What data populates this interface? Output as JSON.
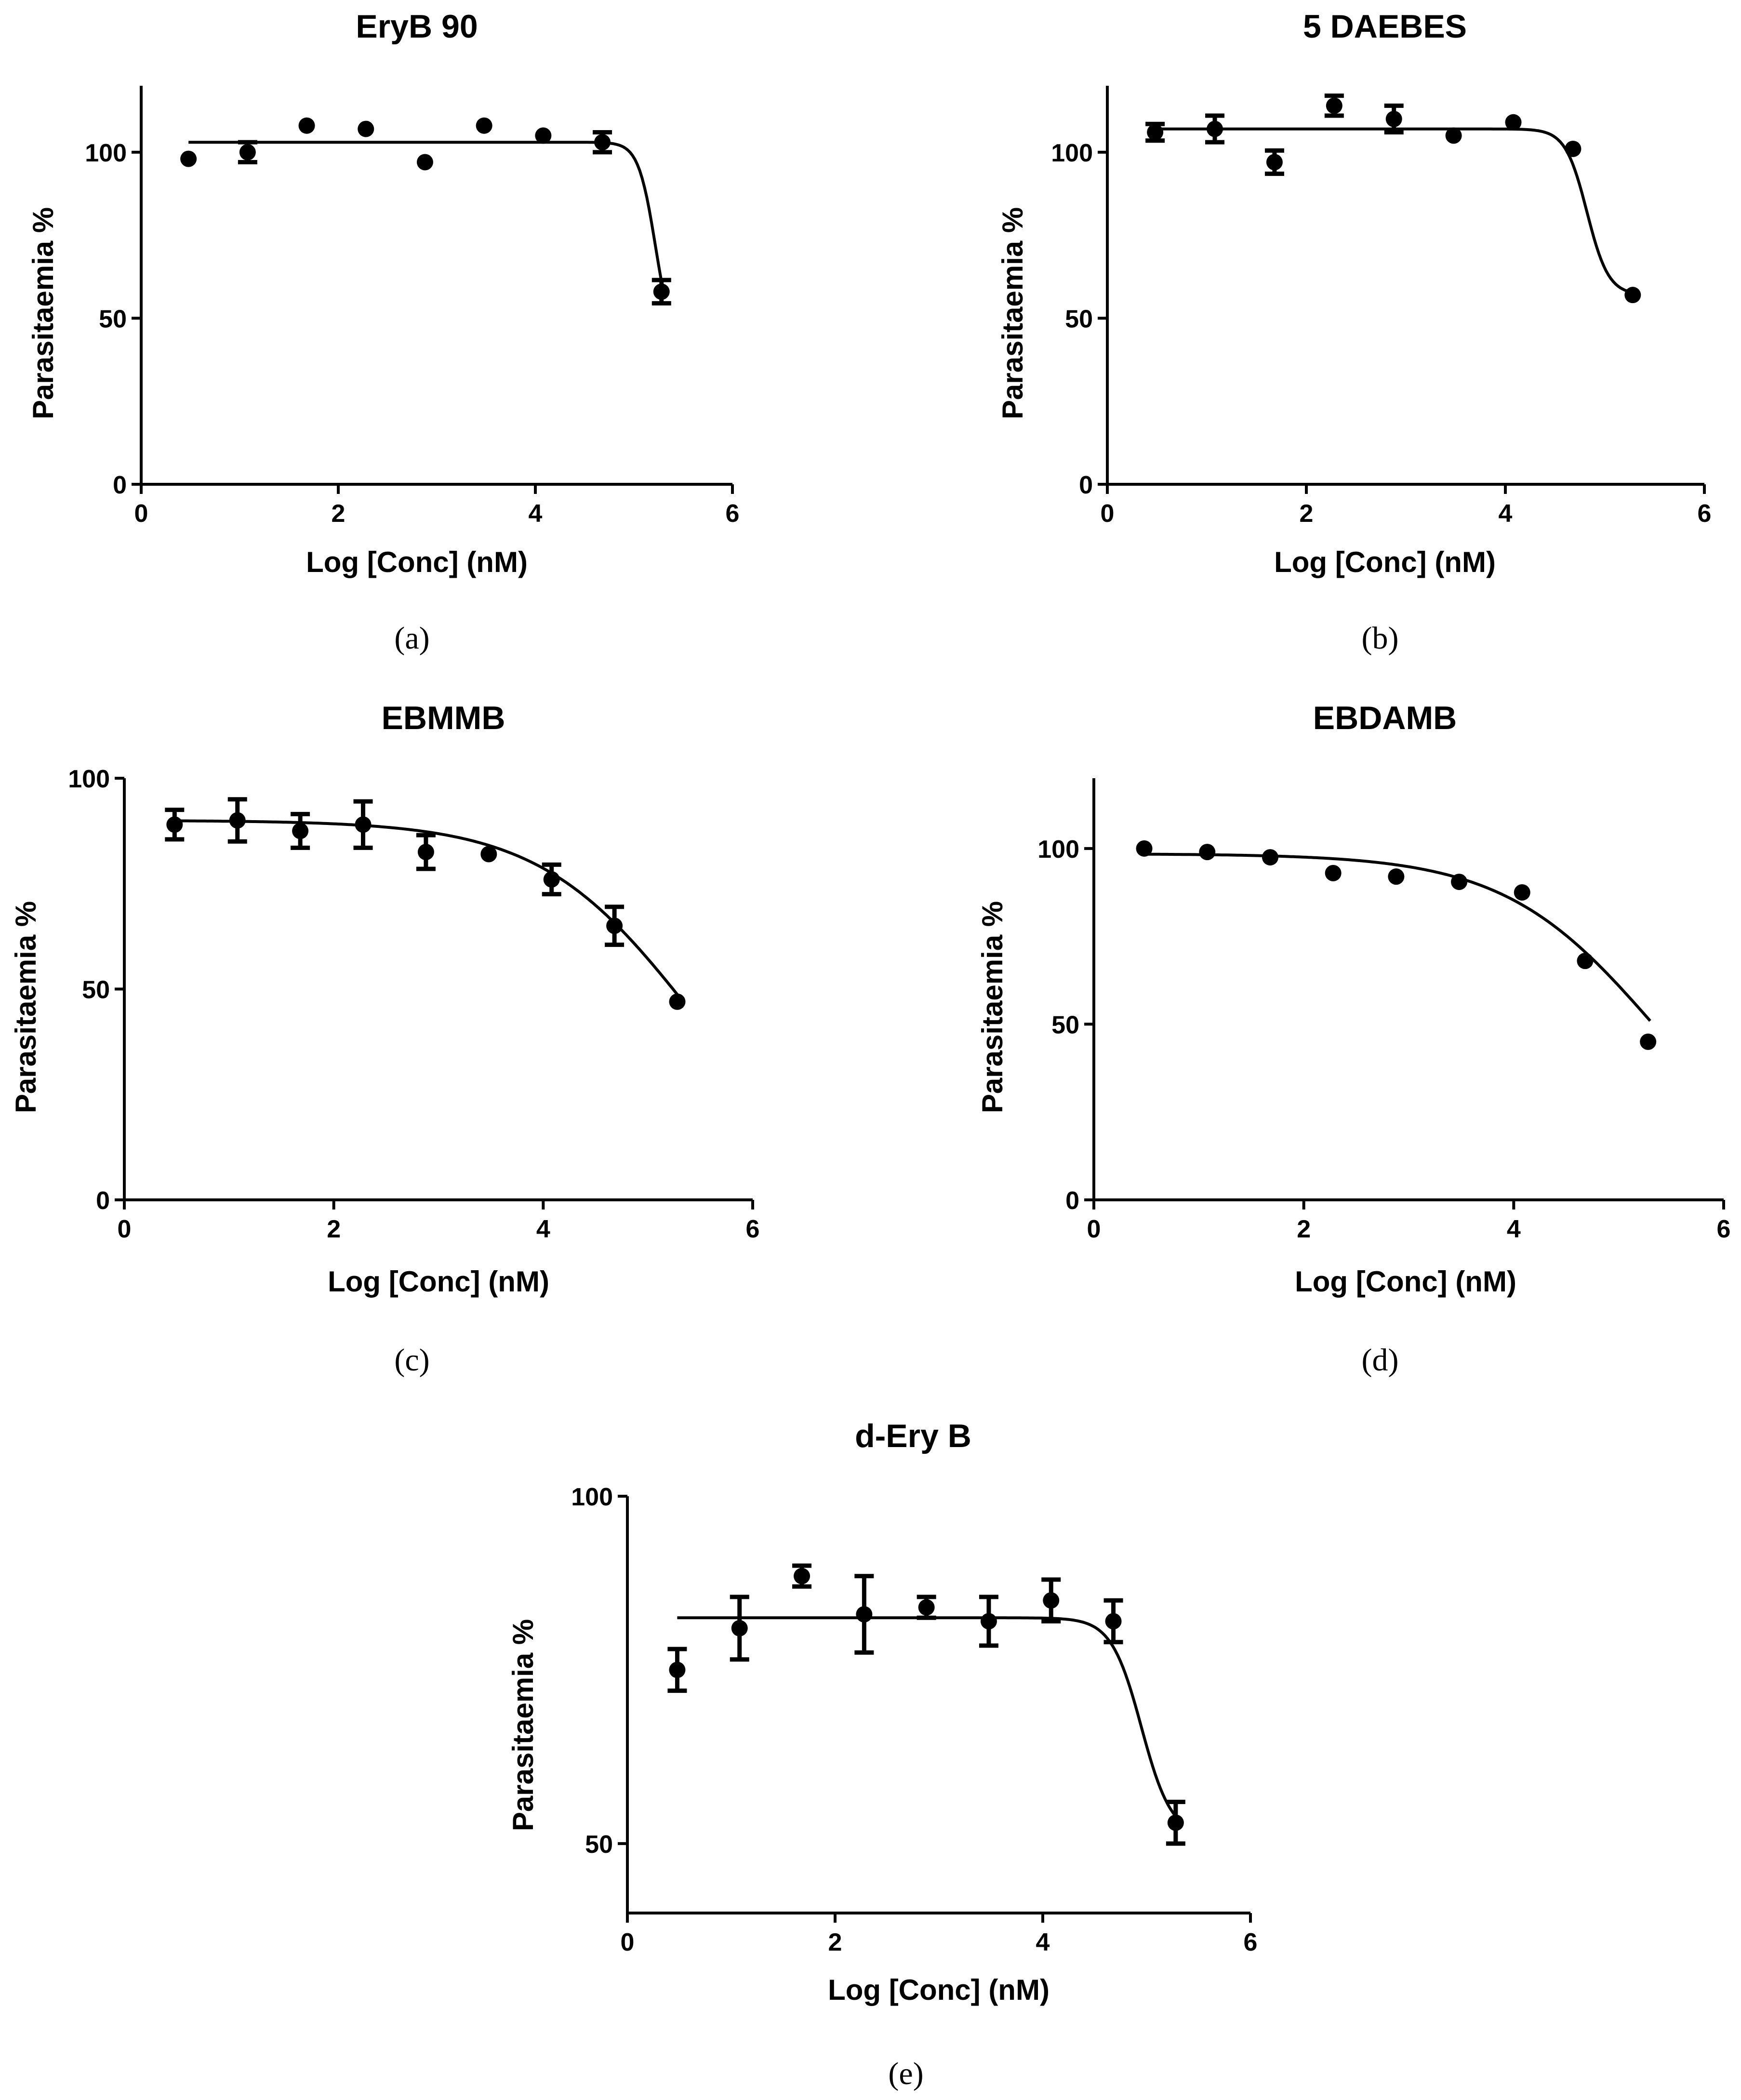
{
  "chart_data": [
    {
      "type": "scatter",
      "panel": "(a)",
      "title": "EryB 90",
      "xlabel": "Log [Conc] (nM)",
      "ylabel": "Parasitaemia %",
      "xlim": [
        0,
        6
      ],
      "ylim": [
        0,
        120
      ],
      "xticks": [
        0,
        2,
        4,
        6
      ],
      "yticks": [
        0,
        50,
        100
      ],
      "points": [
        {
          "x": 0.48,
          "y": 98,
          "err": 0
        },
        {
          "x": 1.08,
          "y": 100,
          "err": 3
        },
        {
          "x": 1.68,
          "y": 108,
          "err": 0
        },
        {
          "x": 2.28,
          "y": 107,
          "err": 0
        },
        {
          "x": 2.88,
          "y": 97,
          "err": 0
        },
        {
          "x": 3.48,
          "y": 108,
          "err": 0
        },
        {
          "x": 4.08,
          "y": 105,
          "err": 0
        },
        {
          "x": 4.68,
          "y": 103,
          "err": 3
        },
        {
          "x": 5.28,
          "y": 58,
          "err": 3.5
        }
      ],
      "fit": {
        "top": 103,
        "bottom": 40,
        "logec50": 5.22,
        "hill": 5,
        "xfrom": 0.48,
        "xto": 5.3
      }
    },
    {
      "type": "scatter",
      "panel": "(b)",
      "title": "5 DAEBES",
      "xlabel": "Log [Conc] (nM)",
      "ylabel": "Parasitaemia %",
      "xlim": [
        0,
        6
      ],
      "ylim": [
        0,
        120
      ],
      "xticks": [
        0,
        2,
        4,
        6
      ],
      "yticks": [
        0,
        50,
        100
      ],
      "points": [
        {
          "x": 0.48,
          "y": 106,
          "err": 2.5
        },
        {
          "x": 1.08,
          "y": 107,
          "err": 4
        },
        {
          "x": 1.68,
          "y": 97,
          "err": 3.5
        },
        {
          "x": 2.28,
          "y": 114,
          "err": 3
        },
        {
          "x": 2.88,
          "y": 110,
          "err": 4
        },
        {
          "x": 3.48,
          "y": 105,
          "err": 0
        },
        {
          "x": 4.08,
          "y": 109,
          "err": 0
        },
        {
          "x": 4.68,
          "y": 101,
          "err": 0
        },
        {
          "x": 5.28,
          "y": 57,
          "err": 0
        }
      ],
      "fit": {
        "top": 107,
        "bottom": 57,
        "logec50": 4.82,
        "hill": 4,
        "xfrom": 0.48,
        "xto": 5.3
      }
    },
    {
      "type": "scatter",
      "panel": "(c)",
      "title": "EBMMB",
      "xlabel": "Log [Conc] (nM)",
      "ylabel": "Parasitaemia %",
      "xlim": [
        0,
        6
      ],
      "ylim": [
        0,
        100
      ],
      "xticks": [
        0,
        2,
        4,
        6
      ],
      "yticks": [
        0,
        50,
        100
      ],
      "points": [
        {
          "x": 0.48,
          "y": 89,
          "err": 3.5
        },
        {
          "x": 1.08,
          "y": 90,
          "err": 5
        },
        {
          "x": 1.68,
          "y": 87.5,
          "err": 4
        },
        {
          "x": 2.28,
          "y": 89,
          "err": 5.5
        },
        {
          "x": 2.88,
          "y": 82.5,
          "err": 4
        },
        {
          "x": 3.48,
          "y": 82,
          "err": 0
        },
        {
          "x": 4.08,
          "y": 76,
          "err": 3.5
        },
        {
          "x": 4.68,
          "y": 65,
          "err": 4.5
        },
        {
          "x": 5.28,
          "y": 47,
          "err": 0
        }
      ],
      "fit": {
        "top": 90,
        "bottom": 0,
        "logec50": 5.4,
        "hill": 0.6,
        "xfrom": 0.48,
        "xto": 5.3
      }
    },
    {
      "type": "scatter",
      "panel": "(d)",
      "title": "EBDAMB",
      "xlabel": "Log [Conc] (nM)",
      "ylabel": "Parasitaemia %",
      "xlim": [
        0,
        6
      ],
      "ylim": [
        0,
        120
      ],
      "xticks": [
        0,
        2,
        4,
        6
      ],
      "yticks": [
        0,
        50,
        100
      ],
      "points": [
        {
          "x": 0.48,
          "y": 100,
          "err": 0
        },
        {
          "x": 1.08,
          "y": 99,
          "err": 0
        },
        {
          "x": 1.68,
          "y": 97.5,
          "err": 0
        },
        {
          "x": 2.28,
          "y": 93,
          "err": 0
        },
        {
          "x": 2.88,
          "y": 92,
          "err": 0
        },
        {
          "x": 3.48,
          "y": 90.5,
          "err": 0
        },
        {
          "x": 4.08,
          "y": 87.5,
          "err": 0
        },
        {
          "x": 4.68,
          "y": 68,
          "err": 0
        },
        {
          "x": 5.28,
          "y": 45,
          "err": 0
        }
      ],
      "fit": {
        "top": 98.5,
        "bottom": 0,
        "logec50": 5.35,
        "hill": 0.6,
        "xfrom": 0.48,
        "xto": 5.3
      }
    },
    {
      "type": "scatter",
      "panel": "(e)",
      "title": "d-Ery B",
      "xlabel": "Log [Conc] (nM)",
      "ylabel": "Parasitaemia %",
      "xlim": [
        0,
        6
      ],
      "ylim": [
        40,
        100
      ],
      "xticks": [
        0,
        2,
        4,
        6
      ],
      "yticks": [
        50,
        100
      ],
      "points": [
        {
          "x": 0.48,
          "y": 75,
          "err": 3
        },
        {
          "x": 1.08,
          "y": 81,
          "err": 4.5
        },
        {
          "x": 1.68,
          "y": 88.5,
          "err": 1.5
        },
        {
          "x": 2.28,
          "y": 83,
          "err": 5.5
        },
        {
          "x": 2.88,
          "y": 84,
          "err": 1.5
        },
        {
          "x": 3.48,
          "y": 82,
          "err": 3.5
        },
        {
          "x": 4.08,
          "y": 85,
          "err": 3
        },
        {
          "x": 4.68,
          "y": 82,
          "err": 3
        },
        {
          "x": 5.28,
          "y": 53,
          "err": 3
        }
      ],
      "fit": {
        "top": 82.5,
        "bottom": 51,
        "logec50": 4.95,
        "hill": 3,
        "xfrom": 0.48,
        "xto": 5.3
      }
    }
  ]
}
